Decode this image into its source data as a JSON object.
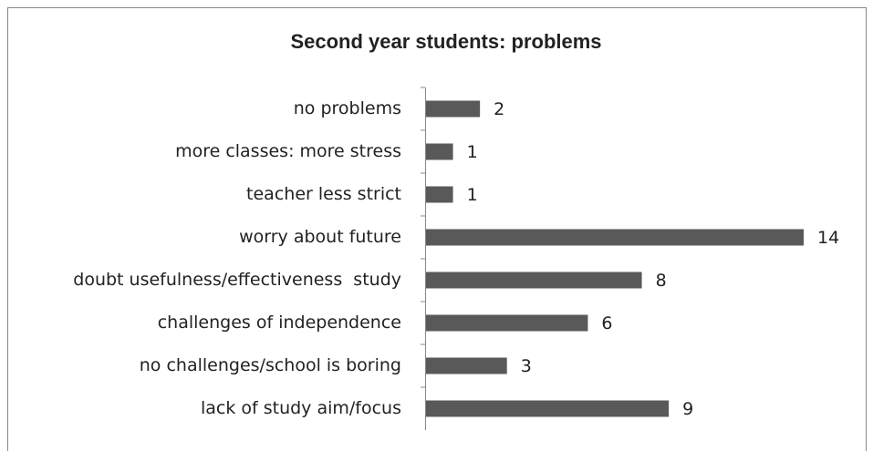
{
  "chart_data": {
    "type": "bar",
    "orientation": "horizontal",
    "title": "Second year students: problems",
    "categories": [
      "no problems",
      "more classes: more stress",
      "teacher less strict",
      "worry about future",
      "doubt usefulness/effectiveness  study",
      "challenges of independence",
      "no challenges/school is boring",
      "lack of study aim/focus"
    ],
    "values": [
      2,
      1,
      1,
      14,
      8,
      6,
      3,
      9
    ],
    "color": "#595959"
  }
}
